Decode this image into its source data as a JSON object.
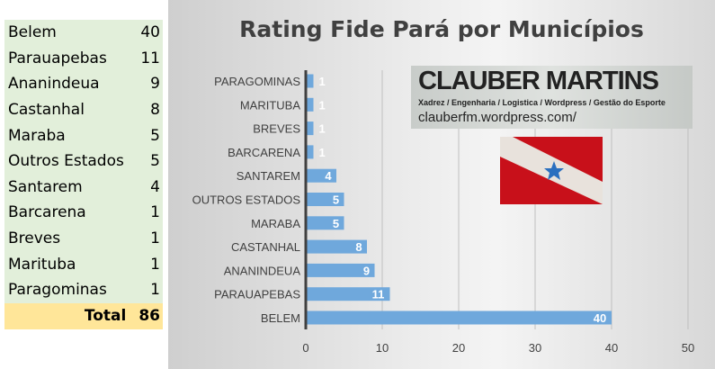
{
  "table": {
    "rows": [
      [
        "Belem",
        "40"
      ],
      [
        "Parauapebas",
        "11"
      ],
      [
        "Ananindeua",
        "9"
      ],
      [
        "Castanhal",
        "8"
      ],
      [
        "Maraba",
        "5"
      ],
      [
        "Outros Estados",
        "5"
      ],
      [
        "Santarem",
        "4"
      ],
      [
        "Barcarena",
        "1"
      ],
      [
        "Breves",
        "1"
      ],
      [
        "Marituba",
        "1"
      ],
      [
        "Paragominas",
        "1"
      ]
    ],
    "total_label": "Total",
    "total_value": "86"
  },
  "logo": {
    "name": "CLAUBER MARTINS",
    "subtitle": "Xadrez / Engenharia / Logistica / Wordpress / Gestão do Esporte",
    "url": "clauberfm.wordpress.com/"
  },
  "chart_data": {
    "type": "bar",
    "orientation": "horizontal",
    "title": "Rating Fide Pará por Municípios",
    "categories": [
      "PARAGOMINAS",
      "MARITUBA",
      "BREVES",
      "BARCARENA",
      "SANTAREM",
      "OUTROS ESTADOS",
      "MARABA",
      "CASTANHAL",
      "ANANINDEUA",
      "PARAUAPEBAS",
      "BELEM"
    ],
    "values": [
      1,
      1,
      1,
      1,
      4,
      5,
      5,
      8,
      9,
      11,
      40
    ],
    "xlim": [
      0,
      50
    ],
    "xticks": [
      0,
      10,
      20,
      30,
      40,
      50
    ],
    "grid": true,
    "data_labels": true,
    "bar_color": "#6fa8dc"
  }
}
